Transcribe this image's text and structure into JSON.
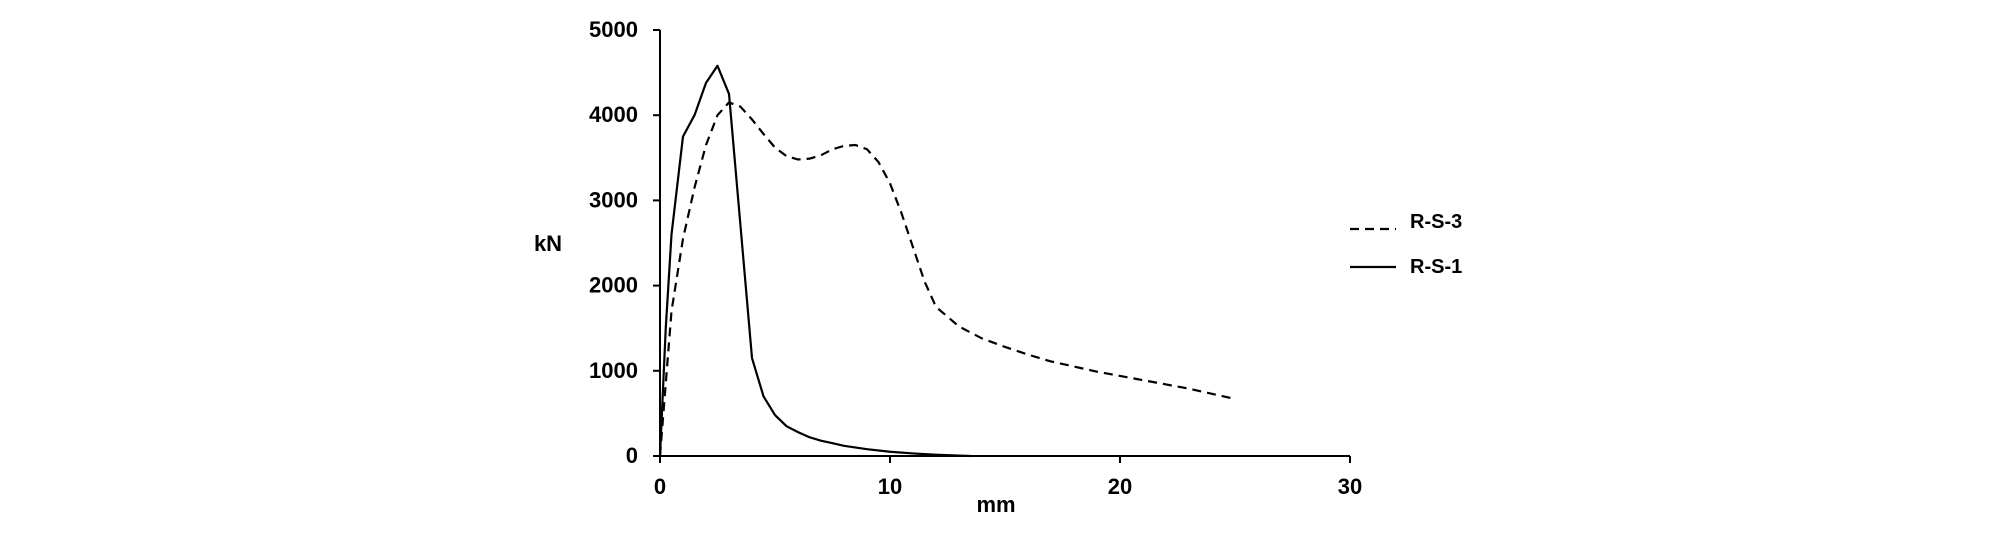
{
  "chart_data": {
    "type": "line",
    "title": "",
    "xlabel": "mm",
    "ylabel": "kN",
    "xlim": [
      0,
      30
    ],
    "ylim": [
      0,
      5000
    ],
    "x_ticks": [
      0,
      10,
      20,
      30
    ],
    "y_ticks": [
      0,
      1000,
      2000,
      3000,
      4000,
      5000
    ],
    "x_tick_labels": [
      "0",
      "10",
      "20",
      "30"
    ],
    "y_tick_labels": [
      "0",
      "1000",
      "2000",
      "3000",
      "4000",
      "5000"
    ],
    "grid": false,
    "legend_position": "right",
    "series": [
      {
        "name": "R-S-3",
        "line_style": "dashed",
        "color": "#000000",
        "x": [
          0,
          0.5,
          1.0,
          1.5,
          2.0,
          2.5,
          3.0,
          3.5,
          4.0,
          4.5,
          5.0,
          5.5,
          6.0,
          6.5,
          7.0,
          7.5,
          8.0,
          8.5,
          9.0,
          9.5,
          10.0,
          10.5,
          11.0,
          11.5,
          12.0,
          13.0,
          14.0,
          15.0,
          16.0,
          17.0,
          18.0,
          19.0,
          20.0,
          21.0,
          22.0,
          23.0,
          24.0,
          25.0
        ],
        "y": [
          0,
          1700,
          2550,
          3150,
          3650,
          4000,
          4150,
          4100,
          3950,
          3780,
          3620,
          3520,
          3480,
          3490,
          3530,
          3600,
          3640,
          3650,
          3600,
          3450,
          3200,
          2850,
          2450,
          2050,
          1750,
          1520,
          1380,
          1280,
          1190,
          1110,
          1050,
          990,
          940,
          890,
          840,
          790,
          730,
          670
        ]
      },
      {
        "name": "R-S-1",
        "line_style": "solid",
        "color": "#000000",
        "x": [
          0,
          0.25,
          0.5,
          1.0,
          1.5,
          2.0,
          2.5,
          3.0,
          3.5,
          4.0,
          4.5,
          5.0,
          5.5,
          6.0,
          6.5,
          7.0,
          7.5,
          8.0,
          9.0,
          10.0,
          11.0,
          12.0,
          13.0,
          13.5
        ],
        "y": [
          0,
          1500,
          2600,
          3750,
          4000,
          4380,
          4580,
          4250,
          2700,
          1150,
          700,
          480,
          350,
          280,
          220,
          180,
          150,
          120,
          80,
          50,
          30,
          15,
          5,
          0
        ]
      }
    ]
  }
}
